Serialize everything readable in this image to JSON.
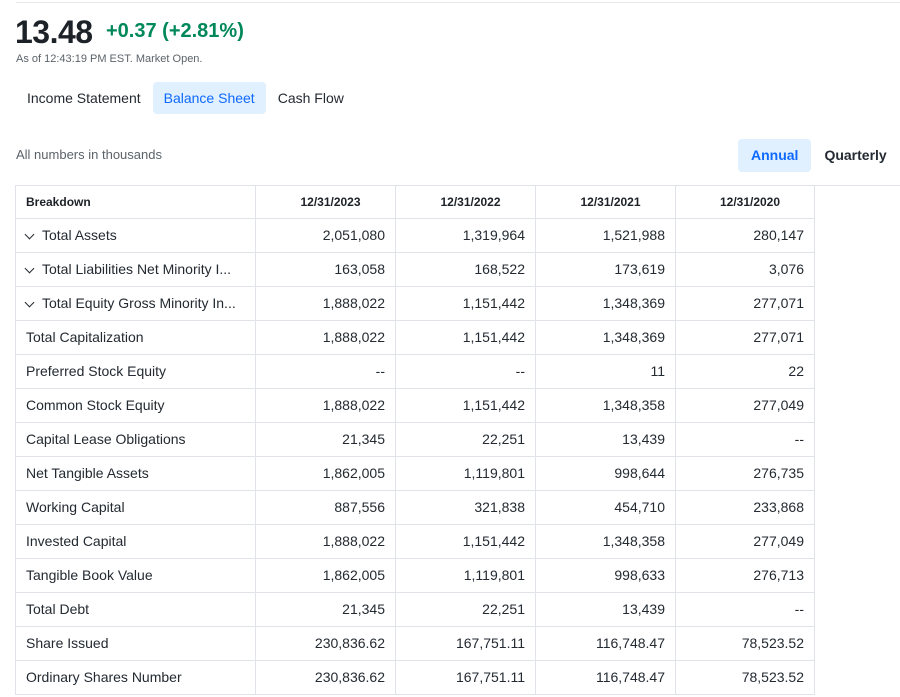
{
  "quote": {
    "price": "13.48",
    "change": "+0.37 (+2.81%)",
    "as_of": "As of 12:43:19 PM EST. Market Open."
  },
  "statement_tabs": [
    {
      "label": "Income Statement",
      "active": false
    },
    {
      "label": "Balance Sheet",
      "active": true
    },
    {
      "label": "Cash Flow",
      "active": false
    }
  ],
  "note": "All numbers in thousands",
  "period_tabs": [
    {
      "label": "Annual",
      "active": true
    },
    {
      "label": "Quarterly",
      "active": false
    }
  ],
  "colors": {
    "accent": "#0f69ff",
    "positive": "#00875a",
    "active_bg": "#e0f0ff"
  },
  "table": {
    "headers": [
      "Breakdown",
      "12/31/2023",
      "12/31/2022",
      "12/31/2021",
      "12/31/2020"
    ],
    "rows": [
      {
        "label": "Total Assets",
        "expandable": true,
        "values": [
          "2,051,080",
          "1,319,964",
          "1,521,988",
          "280,147"
        ]
      },
      {
        "label": "Total Liabilities Net Minority I...",
        "expandable": true,
        "values": [
          "163,058",
          "168,522",
          "173,619",
          "3,076"
        ]
      },
      {
        "label": "Total Equity Gross Minority In...",
        "expandable": true,
        "values": [
          "1,888,022",
          "1,151,442",
          "1,348,369",
          "277,071"
        ]
      },
      {
        "label": "Total Capitalization",
        "expandable": false,
        "values": [
          "1,888,022",
          "1,151,442",
          "1,348,369",
          "277,071"
        ]
      },
      {
        "label": "Preferred Stock Equity",
        "expandable": false,
        "values": [
          "--",
          "--",
          "11",
          "22"
        ]
      },
      {
        "label": "Common Stock Equity",
        "expandable": false,
        "values": [
          "1,888,022",
          "1,151,442",
          "1,348,358",
          "277,049"
        ]
      },
      {
        "label": "Capital Lease Obligations",
        "expandable": false,
        "values": [
          "21,345",
          "22,251",
          "13,439",
          "--"
        ]
      },
      {
        "label": "Net Tangible Assets",
        "expandable": false,
        "values": [
          "1,862,005",
          "1,119,801",
          "998,644",
          "276,735"
        ]
      },
      {
        "label": "Working Capital",
        "expandable": false,
        "values": [
          "887,556",
          "321,838",
          "454,710",
          "233,868"
        ]
      },
      {
        "label": "Invested Capital",
        "expandable": false,
        "values": [
          "1,888,022",
          "1,151,442",
          "1,348,358",
          "277,049"
        ]
      },
      {
        "label": "Tangible Book Value",
        "expandable": false,
        "values": [
          "1,862,005",
          "1,119,801",
          "998,633",
          "276,713"
        ]
      },
      {
        "label": "Total Debt",
        "expandable": false,
        "values": [
          "21,345",
          "22,251",
          "13,439",
          "--"
        ]
      },
      {
        "label": "Share Issued",
        "expandable": false,
        "values": [
          "230,836.62",
          "167,751.11",
          "116,748.47",
          "78,523.52"
        ]
      },
      {
        "label": "Ordinary Shares Number",
        "expandable": false,
        "values": [
          "230,836.62",
          "167,751.11",
          "116,748.47",
          "78,523.52"
        ]
      }
    ]
  }
}
